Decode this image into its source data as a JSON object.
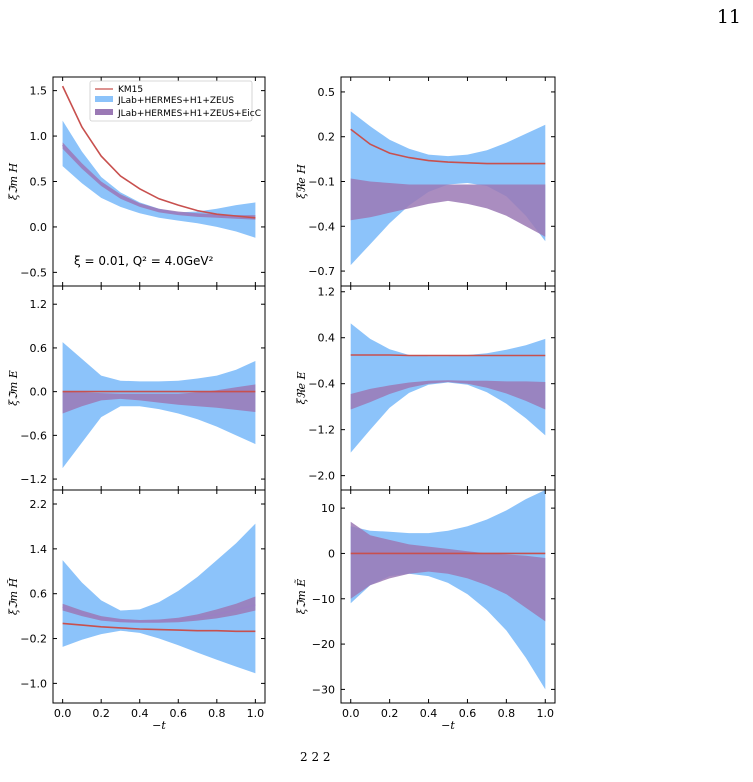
{
  "page_number": "11",
  "caption_fragment": "2                 2                                           2",
  "colors": {
    "km15": "#c8504e",
    "band1": "#8cc3fa",
    "band2": "#9b79b5",
    "band2_line": "#9a80c4"
  },
  "legend": {
    "placement": "top-right of top-left panel",
    "entries": [
      {
        "label": "KM15",
        "type": "line",
        "color": "#c8504e"
      },
      {
        "label": "JLab+HERMES+H1+ZEUS",
        "type": "band",
        "color": "#8cc3fa"
      },
      {
        "label": "JLab+HERMES+H1+ZEUS+EicC",
        "type": "band",
        "color": "#9b79b5"
      }
    ]
  },
  "annotation": "ξ = 0.01, Q² = 4.0GeV²",
  "chart_data": [
    {
      "type": "area",
      "ylabel": "ξℑm H",
      "xlabel": "",
      "xlim": [
        -0.05,
        1.05
      ],
      "ylim": [
        -0.65,
        1.65
      ],
      "yticks": [
        -0.5,
        0.0,
        0.5,
        1.0,
        1.5
      ],
      "ytick_labels": [
        "−0.5",
        "0.0",
        "0.5",
        "1.0",
        "1.5"
      ],
      "xticks": [
        0.0,
        0.2,
        0.4,
        0.6,
        0.8,
        1.0
      ],
      "xtick_labels": [],
      "x": [
        0.0,
        0.1,
        0.2,
        0.3,
        0.4,
        0.5,
        0.6,
        0.7,
        0.8,
        0.9,
        1.0
      ],
      "series": [
        {
          "name": "KM15",
          "kind": "line",
          "y": [
            1.55,
            1.1,
            0.78,
            0.56,
            0.42,
            0.31,
            0.24,
            0.18,
            0.14,
            0.12,
            0.1
          ]
        },
        {
          "name": "JLab+HERMES+H1+ZEUS",
          "kind": "band",
          "lower": [
            0.67,
            0.48,
            0.32,
            0.22,
            0.15,
            0.1,
            0.07,
            0.04,
            0.0,
            -0.05,
            -0.12
          ],
          "upper": [
            1.17,
            0.83,
            0.55,
            0.38,
            0.27,
            0.2,
            0.16,
            0.17,
            0.2,
            0.24,
            0.27
          ]
        },
        {
          "name": "JLab+HERMES+H1+ZEUS+EicC",
          "kind": "band",
          "lower": [
            0.86,
            0.64,
            0.45,
            0.31,
            0.22,
            0.16,
            0.13,
            0.11,
            0.1,
            0.09,
            0.08
          ],
          "upper": [
            0.93,
            0.7,
            0.5,
            0.36,
            0.26,
            0.2,
            0.17,
            0.15,
            0.14,
            0.13,
            0.13
          ],
          "center": [
            0.9,
            0.67,
            0.48,
            0.33,
            0.24,
            0.18,
            0.15,
            0.13,
            0.12,
            0.11,
            0.1
          ]
        }
      ]
    },
    {
      "type": "area",
      "ylabel": "ξℜe H",
      "xlabel": "",
      "xlim": [
        -0.05,
        1.05
      ],
      "ylim": [
        -0.8,
        0.6
      ],
      "yticks": [
        -0.7,
        -0.4,
        -0.1,
        0.2,
        0.5
      ],
      "ytick_labels": [
        "−0.7",
        "−0.4",
        "−0.1",
        "0.2",
        "0.5"
      ],
      "xticks": [
        0.0,
        0.2,
        0.4,
        0.6,
        0.8,
        1.0
      ],
      "xtick_labels": [],
      "x": [
        0.0,
        0.1,
        0.2,
        0.3,
        0.4,
        0.5,
        0.6,
        0.7,
        0.8,
        0.9,
        1.0
      ],
      "series": [
        {
          "name": "KM15",
          "kind": "line",
          "y": [
            0.25,
            0.15,
            0.09,
            0.06,
            0.04,
            0.03,
            0.025,
            0.02,
            0.02,
            0.02,
            0.02
          ]
        },
        {
          "name": "JLab+HERMES+H1+ZEUS",
          "kind": "band",
          "lower": [
            -0.66,
            -0.52,
            -0.38,
            -0.26,
            -0.17,
            -0.12,
            -0.11,
            -0.13,
            -0.2,
            -0.33,
            -0.5
          ],
          "upper": [
            0.37,
            0.27,
            0.18,
            0.12,
            0.08,
            0.07,
            0.08,
            0.11,
            0.16,
            0.22,
            0.28
          ]
        },
        {
          "name": "JLab+HERMES+H1+ZEUS+EicC",
          "kind": "band",
          "lower": [
            -0.36,
            -0.34,
            -0.31,
            -0.28,
            -0.25,
            -0.23,
            -0.25,
            -0.28,
            -0.33,
            -0.4,
            -0.47
          ],
          "upper": [
            -0.08,
            -0.1,
            -0.11,
            -0.12,
            -0.12,
            -0.12,
            -0.12,
            -0.12,
            -0.12,
            -0.12,
            -0.12
          ]
        }
      ]
    },
    {
      "type": "area",
      "ylabel": "ξℑm E",
      "xlabel": "",
      "xlim": [
        -0.05,
        1.05
      ],
      "ylim": [
        -1.35,
        1.45
      ],
      "yticks": [
        -1.2,
        -0.6,
        0.0,
        0.6,
        1.2
      ],
      "ytick_labels": [
        "−1.2",
        "−0.6",
        "0.0",
        "0.6",
        "1.2"
      ],
      "xticks": [
        0.0,
        0.2,
        0.4,
        0.6,
        0.8,
        1.0
      ],
      "xtick_labels": [],
      "x": [
        0.0,
        0.1,
        0.2,
        0.3,
        0.4,
        0.5,
        0.6,
        0.7,
        0.8,
        0.9,
        1.0
      ],
      "series": [
        {
          "name": "KM15",
          "kind": "line",
          "y": [
            0.0,
            0.0,
            0.0,
            0.0,
            0.0,
            0.0,
            0.0,
            0.0,
            0.0,
            0.0,
            0.0
          ]
        },
        {
          "name": "JLab+HERMES+H1+ZEUS",
          "kind": "band",
          "lower": [
            -1.05,
            -0.7,
            -0.35,
            -0.2,
            -0.2,
            -0.24,
            -0.3,
            -0.38,
            -0.48,
            -0.6,
            -0.72
          ],
          "upper": [
            0.68,
            0.45,
            0.22,
            0.15,
            0.14,
            0.14,
            0.15,
            0.18,
            0.22,
            0.3,
            0.42
          ]
        },
        {
          "name": "JLab+HERMES+H1+ZEUS+EicC",
          "kind": "band",
          "lower": [
            -0.3,
            -0.2,
            -0.12,
            -0.1,
            -0.12,
            -0.15,
            -0.18,
            -0.2,
            -0.22,
            -0.25,
            -0.28
          ],
          "upper": [
            0.0,
            -0.01,
            -0.02,
            -0.03,
            -0.03,
            -0.03,
            -0.03,
            -0.01,
            0.02,
            0.06,
            0.1
          ]
        }
      ]
    },
    {
      "type": "area",
      "ylabel": "ξℜe E",
      "xlabel": "",
      "xlim": [
        -0.05,
        1.05
      ],
      "ylim": [
        -2.25,
        1.3
      ],
      "yticks": [
        -2.0,
        -1.2,
        -0.4,
        0.4,
        1.2
      ],
      "ytick_labels": [
        "−2.0",
        "−1.2",
        "−0.4",
        "0.4",
        "1.2"
      ],
      "xticks": [
        0.0,
        0.2,
        0.4,
        0.6,
        0.8,
        1.0
      ],
      "xtick_labels": [],
      "x": [
        0.0,
        0.1,
        0.2,
        0.3,
        0.4,
        0.5,
        0.6,
        0.7,
        0.8,
        0.9,
        1.0
      ],
      "series": [
        {
          "name": "KM15",
          "kind": "line",
          "y": [
            0.1,
            0.1,
            0.1,
            0.09,
            0.09,
            0.09,
            0.09,
            0.09,
            0.09,
            0.09,
            0.09
          ]
        },
        {
          "name": "JLab+HERMES+H1+ZEUS",
          "kind": "band",
          "lower": [
            -1.6,
            -1.2,
            -0.82,
            -0.56,
            -0.42,
            -0.38,
            -0.42,
            -0.55,
            -0.75,
            -1.0,
            -1.3
          ],
          "upper": [
            0.65,
            0.38,
            0.2,
            0.1,
            0.08,
            0.08,
            0.1,
            0.13,
            0.19,
            0.27,
            0.38
          ]
        },
        {
          "name": "JLab+HERMES+H1+ZEUS+EicC",
          "kind": "band",
          "lower": [
            -0.85,
            -0.72,
            -0.58,
            -0.47,
            -0.4,
            -0.37,
            -0.4,
            -0.47,
            -0.57,
            -0.7,
            -0.85
          ],
          "upper": [
            -0.58,
            -0.49,
            -0.43,
            -0.38,
            -0.35,
            -0.34,
            -0.35,
            -0.35,
            -0.36,
            -0.36,
            -0.37
          ]
        }
      ]
    },
    {
      "type": "area",
      "ylabel": "ξℑm H̃",
      "xlabel": "−t",
      "xlim": [
        -0.05,
        1.05
      ],
      "ylim": [
        -1.35,
        2.45
      ],
      "yticks": [
        -1.0,
        -0.2,
        0.6,
        1.4,
        2.2
      ],
      "ytick_labels": [
        "−1.0",
        "−0.2",
        "0.6",
        "1.4",
        "2.2"
      ],
      "xticks": [
        0.0,
        0.2,
        0.4,
        0.6,
        0.8,
        1.0
      ],
      "xtick_labels": [
        "0.0",
        "0.2",
        "0.4",
        "0.6",
        "0.8",
        "1.0"
      ],
      "x": [
        0.0,
        0.1,
        0.2,
        0.3,
        0.4,
        0.5,
        0.6,
        0.7,
        0.8,
        0.9,
        1.0
      ],
      "series": [
        {
          "name": "KM15",
          "kind": "line",
          "y": [
            0.07,
            0.04,
            0.01,
            -0.01,
            -0.03,
            -0.04,
            -0.05,
            -0.06,
            -0.06,
            -0.07,
            -0.07
          ]
        },
        {
          "name": "JLab+HERMES+H1+ZEUS",
          "kind": "band",
          "lower": [
            -0.35,
            -0.22,
            -0.12,
            -0.06,
            -0.1,
            -0.2,
            -0.32,
            -0.45,
            -0.58,
            -0.7,
            -0.82
          ],
          "upper": [
            1.2,
            0.8,
            0.48,
            0.3,
            0.32,
            0.45,
            0.65,
            0.9,
            1.2,
            1.5,
            1.85
          ]
        },
        {
          "name": "JLab+HERMES+H1+ZEUS+EicC",
          "kind": "band",
          "lower": [
            0.3,
            0.2,
            0.12,
            0.09,
            0.08,
            0.08,
            0.09,
            0.12,
            0.16,
            0.22,
            0.3
          ],
          "upper": [
            0.42,
            0.3,
            0.2,
            0.15,
            0.13,
            0.14,
            0.17,
            0.23,
            0.32,
            0.42,
            0.55
          ],
          "center": [
            0.36,
            0.25,
            0.16,
            0.12,
            0.1,
            0.11,
            0.13,
            0.17,
            0.23,
            0.31,
            0.4
          ]
        }
      ]
    },
    {
      "type": "area",
      "ylabel": "ξℑm Ẽ",
      "xlabel": "−t",
      "xlim": [
        -0.05,
        1.05
      ],
      "ylim": [
        -33,
        14
      ],
      "yticks": [
        -30,
        -20,
        -10,
        0,
        10
      ],
      "ytick_labels": [
        "−30",
        "−20",
        "−10",
        "0",
        "10"
      ],
      "xticks": [
        0.0,
        0.2,
        0.4,
        0.6,
        0.8,
        1.0
      ],
      "xtick_labels": [
        "0.0",
        "0.2",
        "0.4",
        "0.6",
        "0.8",
        "1.0"
      ],
      "x": [
        0.0,
        0.1,
        0.2,
        0.3,
        0.4,
        0.5,
        0.6,
        0.7,
        0.8,
        0.9,
        1.0
      ],
      "series": [
        {
          "name": "KM15",
          "kind": "line",
          "y": [
            0,
            0,
            0,
            0,
            0,
            0,
            0,
            0,
            0,
            0,
            0
          ]
        },
        {
          "name": "JLab+HERMES+H1+ZEUS",
          "kind": "band",
          "lower": [
            -11,
            -7,
            -5,
            -4.5,
            -5,
            -6.5,
            -9,
            -12.5,
            -17,
            -23,
            -30
          ],
          "upper": [
            6,
            5,
            4.8,
            4.5,
            4.5,
            5,
            6,
            7.5,
            9.5,
            12,
            14
          ]
        },
        {
          "name": "JLab+HERMES+H1+ZEUS+EicC",
          "kind": "band",
          "lower": [
            -10,
            -7,
            -5.5,
            -4.5,
            -4,
            -4.5,
            -5.5,
            -7,
            -9,
            -12,
            -15
          ],
          "upper": [
            7,
            4,
            3,
            2,
            1.5,
            1,
            0.5,
            0,
            -0.2,
            -0.5,
            -1
          ]
        }
      ]
    }
  ]
}
